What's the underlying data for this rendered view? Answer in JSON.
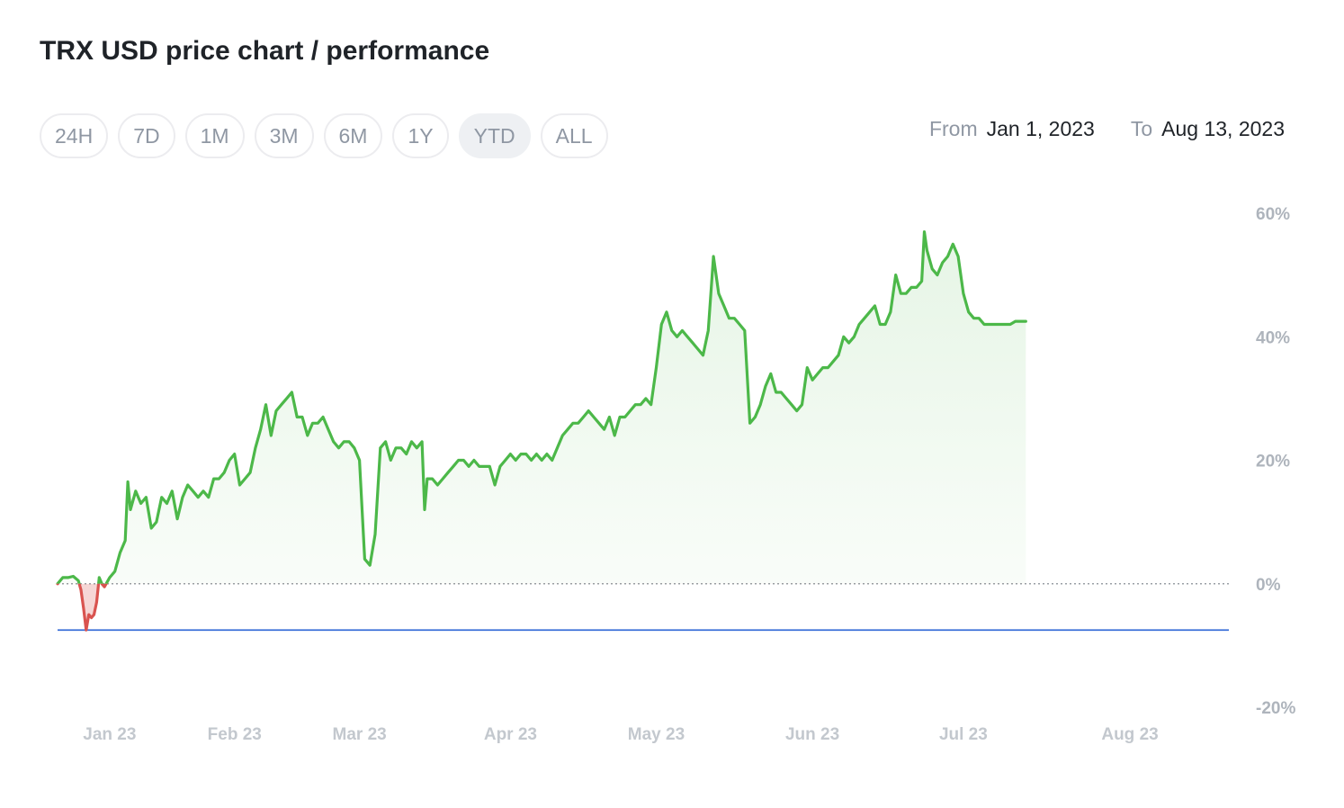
{
  "header": {
    "title": "TRX USD price chart / performance"
  },
  "range_buttons": [
    {
      "label": "24H",
      "active": false
    },
    {
      "label": "7D",
      "active": false
    },
    {
      "label": "1M",
      "active": false
    },
    {
      "label": "3M",
      "active": false
    },
    {
      "label": "6M",
      "active": false
    },
    {
      "label": "1Y",
      "active": false
    },
    {
      "label": "YTD",
      "active": true
    },
    {
      "label": "ALL",
      "active": false
    }
  ],
  "date_range": {
    "from_label": "From",
    "from_value": "Jan 1, 2023",
    "to_label": "To",
    "to_value": "Aug 13, 2023"
  },
  "colors": {
    "positive": "#4cb849",
    "negative": "#d9534f",
    "baseline": "#3a6fd8",
    "zero_line": "#9aa0a6"
  },
  "chart_data": {
    "type": "area",
    "ylim": [
      -20,
      60
    ],
    "y_ticks": [
      60,
      40,
      20,
      0,
      -20
    ],
    "y_tick_labels": [
      "60%",
      "40%",
      "20%",
      "0%",
      "-20%"
    ],
    "x_range_days": [
      0,
      225
    ],
    "x_ticks": [
      {
        "day": 10,
        "label": "Jan 23"
      },
      {
        "day": 34,
        "label": "Feb 23"
      },
      {
        "day": 58,
        "label": "Mar 23"
      },
      {
        "day": 87,
        "label": "Apr 23"
      },
      {
        "day": 115,
        "label": "May 23"
      },
      {
        "day": 145,
        "label": "Jun 23"
      },
      {
        "day": 174,
        "label": "Jul 23"
      },
      {
        "day": 206,
        "label": "Aug 23"
      }
    ],
    "reference_line": -7.5,
    "series": [
      {
        "points": [
          [
            0,
            0
          ],
          [
            1,
            1
          ],
          [
            2,
            1
          ],
          [
            3,
            1.2
          ],
          [
            4,
            0.5
          ],
          [
            4.5,
            -1
          ],
          [
            5,
            -4
          ],
          [
            5.5,
            -7.5
          ],
          [
            6,
            -5
          ],
          [
            6.5,
            -5.5
          ],
          [
            7,
            -5
          ],
          [
            7.5,
            -3
          ],
          [
            8,
            1
          ],
          [
            8.5,
            0
          ],
          [
            9,
            -0.5
          ],
          [
            10,
            1
          ],
          [
            11,
            2
          ],
          [
            12,
            5
          ],
          [
            13,
            7
          ],
          [
            13.5,
            16.5
          ],
          [
            14,
            12
          ],
          [
            15,
            15
          ],
          [
            16,
            13
          ],
          [
            17,
            14
          ],
          [
            18,
            9
          ],
          [
            19,
            10
          ],
          [
            20,
            14
          ],
          [
            21,
            13
          ],
          [
            22,
            15
          ],
          [
            23,
            10.5
          ],
          [
            24,
            14
          ],
          [
            25,
            16
          ],
          [
            26,
            15
          ],
          [
            27,
            14
          ],
          [
            28,
            15
          ],
          [
            29,
            14
          ],
          [
            30,
            17
          ],
          [
            31,
            17
          ],
          [
            32,
            18
          ],
          [
            33,
            20
          ],
          [
            34,
            21
          ],
          [
            35,
            16
          ],
          [
            36,
            17
          ],
          [
            37,
            18
          ],
          [
            38,
            22
          ],
          [
            39,
            25
          ],
          [
            40,
            29
          ],
          [
            41,
            24
          ],
          [
            42,
            28
          ],
          [
            43,
            29
          ],
          [
            44,
            30
          ],
          [
            45,
            31
          ],
          [
            46,
            27
          ],
          [
            47,
            27
          ],
          [
            48,
            24
          ],
          [
            49,
            26
          ],
          [
            50,
            26
          ],
          [
            51,
            27
          ],
          [
            52,
            25
          ],
          [
            53,
            23
          ],
          [
            54,
            22
          ],
          [
            55,
            23
          ],
          [
            56,
            23
          ],
          [
            57,
            22
          ],
          [
            58,
            20
          ],
          [
            59,
            4
          ],
          [
            60,
            3
          ],
          [
            61,
            8
          ],
          [
            62,
            22
          ],
          [
            63,
            23
          ],
          [
            64,
            20
          ],
          [
            65,
            22
          ],
          [
            66,
            22
          ],
          [
            67,
            21
          ],
          [
            68,
            23
          ],
          [
            69,
            22
          ],
          [
            70,
            23
          ],
          [
            70.5,
            12
          ],
          [
            71,
            17
          ],
          [
            72,
            17
          ],
          [
            73,
            16
          ],
          [
            74,
            17
          ],
          [
            75,
            18
          ],
          [
            76,
            19
          ],
          [
            77,
            20
          ],
          [
            78,
            20
          ],
          [
            79,
            19
          ],
          [
            80,
            20
          ],
          [
            81,
            19
          ],
          [
            82,
            19
          ],
          [
            83,
            19
          ],
          [
            84,
            16
          ],
          [
            85,
            19
          ],
          [
            86,
            20
          ],
          [
            87,
            21
          ],
          [
            88,
            20
          ],
          [
            89,
            21
          ],
          [
            90,
            21
          ],
          [
            91,
            20
          ],
          [
            92,
            21
          ],
          [
            93,
            20
          ],
          [
            94,
            21
          ],
          [
            95,
            20
          ],
          [
            96,
            22
          ],
          [
            97,
            24
          ],
          [
            98,
            25
          ],
          [
            99,
            26
          ],
          [
            100,
            26
          ],
          [
            101,
            27
          ],
          [
            102,
            28
          ],
          [
            103,
            27
          ],
          [
            104,
            26
          ],
          [
            105,
            25
          ],
          [
            106,
            27
          ],
          [
            107,
            24
          ],
          [
            108,
            27
          ],
          [
            109,
            27
          ],
          [
            110,
            28
          ],
          [
            111,
            29
          ],
          [
            112,
            29
          ],
          [
            113,
            30
          ],
          [
            114,
            29
          ],
          [
            115,
            35
          ],
          [
            116,
            42
          ],
          [
            117,
            44
          ],
          [
            118,
            41
          ],
          [
            119,
            40
          ],
          [
            120,
            41
          ],
          [
            121,
            40
          ],
          [
            122,
            39
          ],
          [
            123,
            38
          ],
          [
            124,
            37
          ],
          [
            125,
            41
          ],
          [
            126,
            53
          ],
          [
            127,
            47
          ],
          [
            128,
            45
          ],
          [
            129,
            43
          ],
          [
            130,
            43
          ],
          [
            131,
            42
          ],
          [
            132,
            41
          ],
          [
            133,
            26
          ],
          [
            134,
            27
          ],
          [
            135,
            29
          ],
          [
            136,
            32
          ],
          [
            137,
            34
          ],
          [
            138,
            31
          ],
          [
            139,
            31
          ],
          [
            140,
            30
          ],
          [
            141,
            29
          ],
          [
            142,
            28
          ],
          [
            143,
            29
          ],
          [
            144,
            35
          ],
          [
            145,
            33
          ],
          [
            146,
            34
          ],
          [
            147,
            35
          ],
          [
            148,
            35
          ],
          [
            149,
            36
          ],
          [
            150,
            37
          ],
          [
            151,
            40
          ],
          [
            152,
            39
          ],
          [
            153,
            40
          ],
          [
            154,
            42
          ],
          [
            155,
            43
          ],
          [
            156,
            44
          ],
          [
            157,
            45
          ],
          [
            158,
            42
          ],
          [
            159,
            42
          ],
          [
            160,
            44
          ],
          [
            161,
            50
          ],
          [
            162,
            47
          ],
          [
            163,
            47
          ],
          [
            164,
            48
          ],
          [
            165,
            48
          ],
          [
            166,
            49
          ],
          [
            166.5,
            57
          ],
          [
            167,
            54
          ],
          [
            168,
            51
          ],
          [
            169,
            50
          ],
          [
            170,
            52
          ],
          [
            171,
            53
          ],
          [
            172,
            55
          ],
          [
            173,
            53
          ],
          [
            174,
            47
          ],
          [
            175,
            44
          ],
          [
            176,
            43
          ],
          [
            177,
            43
          ],
          [
            178,
            42
          ],
          [
            179,
            42
          ],
          [
            180,
            42
          ],
          [
            181,
            42
          ],
          [
            182,
            42
          ],
          [
            183,
            42
          ],
          [
            184,
            42.5
          ],
          [
            185,
            42.5
          ],
          [
            186,
            42.5
          ]
        ]
      }
    ]
  }
}
